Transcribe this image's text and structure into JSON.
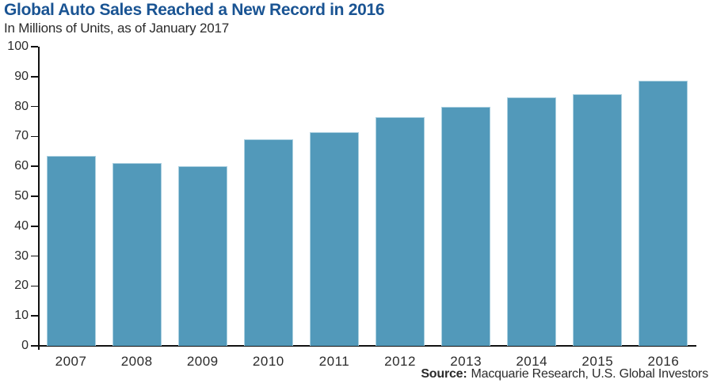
{
  "header": {
    "title": "Global Auto Sales Reached a New Record in 2016",
    "subtitle": "In Millions of Units, as of January 2017"
  },
  "source": {
    "label": "Source:",
    "text": "Macquarie Research, U.S. Global Investors"
  },
  "colors": {
    "title_blue": "#1a5493",
    "text_dark": "#2b2b2b",
    "axis_black": "#111111",
    "bar_fill": "#5299ba",
    "bar_border": "#abd0e0"
  },
  "chart_data": {
    "type": "bar",
    "title": "Global Auto Sales Reached a New Record in 2016",
    "subtitle": "In Millions of Units, as of January 2017",
    "categories": [
      "2007",
      "2008",
      "2009",
      "2010",
      "2011",
      "2012",
      "2013",
      "2014",
      "2015",
      "2016"
    ],
    "values": [
      63.5,
      61,
      60,
      69,
      71.5,
      76.5,
      80,
      83,
      84,
      88.5
    ],
    "xlabel": "",
    "ylabel": "In Millions of Units",
    "ylim": [
      0,
      100
    ],
    "ytick_step": 10,
    "grid": false,
    "legend": false,
    "source": "Source: Macquarie Research, U.S. Global Investors"
  }
}
